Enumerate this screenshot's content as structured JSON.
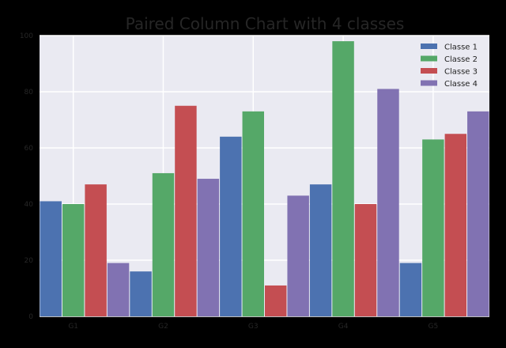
{
  "chart_data": {
    "type": "bar",
    "title": "Paired Column Chart with 4 classes",
    "xlabel": "",
    "ylabel": "",
    "categories": [
      "G1",
      "G2",
      "G3",
      "G4",
      "G5"
    ],
    "ylim": [
      0,
      100
    ],
    "yticks": [
      0,
      20,
      40,
      60,
      80,
      100
    ],
    "grid": true,
    "legend_position": "top-right",
    "series": [
      {
        "name": "Classe 1",
        "color": "#4c72b0",
        "values": [
          41,
          16,
          64,
          47,
          19
        ]
      },
      {
        "name": "Classe 2",
        "color": "#55a868",
        "values": [
          40,
          51,
          73,
          98,
          63
        ]
      },
      {
        "name": "Classe 3",
        "color": "#c44e52",
        "values": [
          47,
          75,
          11,
          40,
          65
        ]
      },
      {
        "name": "Classe 4",
        "color": "#8172b2",
        "values": [
          19,
          49,
          43,
          81,
          73
        ]
      }
    ],
    "background_color": "#eaeaf2",
    "grid_color": "#ffffff"
  }
}
